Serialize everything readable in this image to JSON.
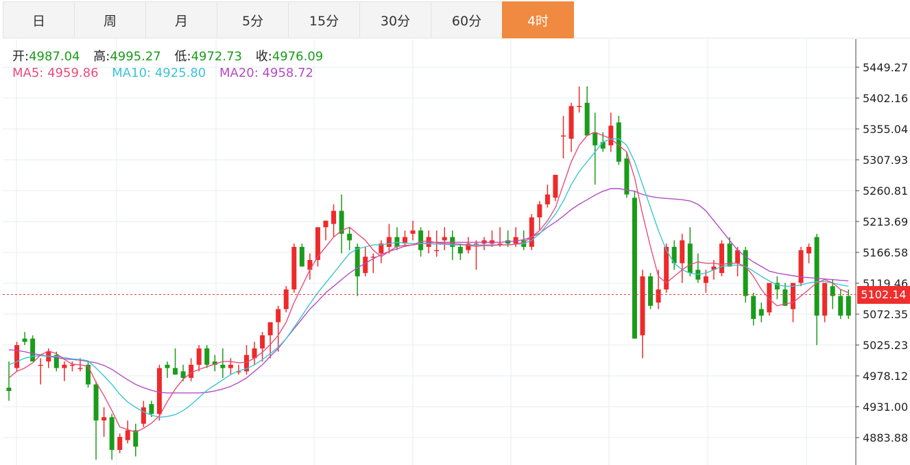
{
  "tabs": [
    {
      "label": "日",
      "active": false
    },
    {
      "label": "周",
      "active": false
    },
    {
      "label": "月",
      "active": false
    },
    {
      "label": "5分",
      "active": false
    },
    {
      "label": "15分",
      "active": false
    },
    {
      "label": "30分",
      "active": false
    },
    {
      "label": "60分",
      "active": false
    },
    {
      "label": "4时",
      "active": true
    }
  ],
  "ohlc": {
    "open_label": "开:",
    "open": "4987.04",
    "high_label": "高:",
    "high": "4995.27",
    "low_label": "低:",
    "low": "4972.73",
    "close_label": "收:",
    "close": "4976.09"
  },
  "ma": {
    "ma5_label": "MA5:",
    "ma5": "4959.86",
    "ma10_label": "MA10:",
    "ma10": "4925.80",
    "ma20_label": "MA20:",
    "ma20": "4958.72"
  },
  "current_price": "5102.14",
  "colors": {
    "up": "#ee2a2a",
    "down": "#1a9c1a",
    "ma5": "#e84c7a",
    "ma10": "#3cc4d4",
    "ma20": "#b44cc4",
    "grid": "#e4ecf2",
    "accent": "#f08a40",
    "price_line": "#e83a3a"
  },
  "chart_data": {
    "type": "candlestick",
    "y_ticks": [
      "5449.27",
      "5402.16",
      "5355.04",
      "5307.93",
      "5260.81",
      "5213.69",
      "5166.58",
      "5119.46",
      "5072.35",
      "5025.23",
      "4978.12",
      "4931.00",
      "4883.88"
    ],
    "ylim": [
      4850,
      5480
    ],
    "current_price": 5102.14,
    "candles": [
      [
        4960,
        5000,
        4940,
        4955
      ],
      [
        4990,
        5030,
        4985,
        5025
      ],
      [
        5035,
        5045,
        5025,
        5030
      ],
      [
        5035,
        5040,
        5000,
        5000
      ],
      [
        4995,
        5005,
        4965,
        4995
      ],
      [
        5000,
        5020,
        4990,
        5015
      ],
      [
        5010,
        5015,
        4985,
        4990
      ],
      [
        4990,
        5000,
        4970,
        4995
      ],
      [
        4995,
        5000,
        4985,
        4995
      ],
      [
        4990,
        5005,
        4985,
        4990
      ],
      [
        4995,
        5000,
        4960,
        4965
      ],
      [
        4965,
        4970,
        4850,
        4910
      ],
      [
        4910,
        4930,
        4885,
        4915
      ],
      [
        4915,
        4920,
        4850,
        4865
      ],
      [
        4865,
        4890,
        4860,
        4885
      ],
      [
        4880,
        4910,
        4875,
        4895
      ],
      [
        4895,
        4905,
        4855,
        4870
      ],
      [
        4905,
        4940,
        4900,
        4930
      ],
      [
        4935,
        4940,
        4915,
        4920
      ],
      [
        4920,
        4995,
        4910,
        4990
      ],
      [
        4995,
        5000,
        4975,
        4990
      ],
      [
        4990,
        5020,
        4980,
        4980
      ],
      [
        4985,
        4995,
        4970,
        4975
      ],
      [
        4975,
        5005,
        4970,
        4995
      ],
      [
        4995,
        5025,
        4985,
        5020
      ],
      [
        5020,
        5025,
        4990,
        4995
      ],
      [
        5000,
        5010,
        4985,
        4995
      ],
      [
        4995,
        5020,
        4975,
        4990
      ],
      [
        4990,
        5005,
        4980,
        4995
      ],
      [
        4985,
        4995,
        4980,
        4985
      ],
      [
        4985,
        5025,
        4980,
        5010
      ],
      [
        5005,
        5030,
        4995,
        5020
      ],
      [
        5020,
        5045,
        5000,
        5040
      ],
      [
        5040,
        5060,
        5005,
        5060
      ],
      [
        5060,
        5085,
        5015,
        5080
      ],
      [
        5080,
        5115,
        5075,
        5110
      ],
      [
        5110,
        5180,
        5105,
        5175
      ],
      [
        5175,
        5180,
        5145,
        5145
      ],
      [
        5140,
        5165,
        5125,
        5155
      ],
      [
        5155,
        5205,
        5145,
        5205
      ],
      [
        5205,
        5215,
        5185,
        5215
      ],
      [
        5210,
        5240,
        5190,
        5230
      ],
      [
        5230,
        5255,
        5165,
        5195
      ],
      [
        5195,
        5205,
        5170,
        5185
      ],
      [
        5175,
        5180,
        5100,
        5130
      ],
      [
        5135,
        5175,
        5130,
        5160
      ],
      [
        5160,
        5165,
        5135,
        5160
      ],
      [
        5165,
        5185,
        5150,
        5180
      ],
      [
        5175,
        5210,
        5165,
        5190
      ],
      [
        5190,
        5205,
        5170,
        5175
      ],
      [
        5180,
        5200,
        5175,
        5190
      ],
      [
        5195,
        5215,
        5185,
        5200
      ],
      [
        5200,
        5205,
        5160,
        5170
      ],
      [
        5175,
        5200,
        5165,
        5190
      ],
      [
        5170,
        5200,
        5160,
        5170
      ],
      [
        5185,
        5205,
        5170,
        5190
      ],
      [
        5190,
        5200,
        5155,
        5175
      ],
      [
        5175,
        5180,
        5155,
        5165
      ],
      [
        5170,
        5190,
        5165,
        5180
      ],
      [
        5180,
        5185,
        5140,
        5180
      ],
      [
        5180,
        5190,
        5170,
        5185
      ],
      [
        5180,
        5200,
        5175,
        5185
      ],
      [
        5180,
        5205,
        5175,
        5180
      ],
      [
        5185,
        5200,
        5175,
        5180
      ],
      [
        5180,
        5205,
        5175,
        5190
      ],
      [
        5185,
        5200,
        5170,
        5175
      ],
      [
        5175,
        5225,
        5170,
        5220
      ],
      [
        5220,
        5245,
        5200,
        5240
      ],
      [
        5240,
        5270,
        5235,
        5255
      ],
      [
        5250,
        5285,
        5245,
        5285
      ],
      [
        5345,
        5375,
        5310,
        5345
      ],
      [
        5340,
        5395,
        5320,
        5390
      ],
      [
        5390,
        5420,
        5380,
        5390
      ],
      [
        5395,
        5420,
        5345,
        5345
      ],
      [
        5350,
        5380,
        5270,
        5330
      ],
      [
        5335,
        5350,
        5320,
        5325
      ],
      [
        5330,
        5380,
        5320,
        5360
      ],
      [
        5365,
        5375,
        5300,
        5305
      ],
      [
        5310,
        5320,
        5250,
        5255
      ],
      [
        5250,
        5260,
        5035,
        5035
      ],
      [
        5040,
        5140,
        5005,
        5130
      ],
      [
        5130,
        5135,
        5080,
        5085
      ],
      [
        5090,
        5140,
        5080,
        5110
      ],
      [
        5110,
        5180,
        5105,
        5175
      ],
      [
        5175,
        5185,
        5140,
        5150
      ],
      [
        5150,
        5195,
        5120,
        5185
      ],
      [
        5180,
        5205,
        5130,
        5135
      ],
      [
        5140,
        5165,
        5120,
        5125
      ],
      [
        5120,
        5140,
        5105,
        5130
      ],
      [
        5140,
        5155,
        5125,
        5145
      ],
      [
        5135,
        5185,
        5130,
        5180
      ],
      [
        5180,
        5190,
        5145,
        5145
      ],
      [
        5150,
        5175,
        5130,
        5170
      ],
      [
        5170,
        5175,
        5090,
        5100
      ],
      [
        5100,
        5105,
        5055,
        5065
      ],
      [
        5080,
        5090,
        5060,
        5070
      ],
      [
        5075,
        5120,
        5070,
        5120
      ],
      [
        5120,
        5130,
        5095,
        5110
      ],
      [
        5110,
        5120,
        5085,
        5085
      ],
      [
        5080,
        5120,
        5060,
        5120
      ],
      [
        5120,
        5175,
        5115,
        5170
      ],
      [
        5165,
        5180,
        5150,
        5175
      ],
      [
        5190,
        5195,
        5025,
        5070
      ],
      [
        5070,
        5115,
        5060,
        5120
      ],
      [
        5115,
        5125,
        5080,
        5100
      ],
      [
        5100,
        5110,
        5065,
        5070
      ],
      [
        5100,
        5110,
        5065,
        5070
      ]
    ],
    "ma5": [
      4975,
      4985,
      4990,
      4998,
      5010,
      5016,
      5012,
      5003,
      4996,
      4995,
      4993,
      4968,
      4948,
      4925,
      4900,
      4896,
      4892,
      4898,
      4906,
      4917,
      4939,
      4958,
      4973,
      4983,
      4988,
      4992,
      4996,
      5000,
      5000,
      4998,
      4999,
      5005,
      5014,
      5026,
      5040,
      5060,
      5090,
      5115,
      5140,
      5160,
      5175,
      5190,
      5200,
      5205,
      5195,
      5185,
      5170,
      5160,
      5168,
      5176,
      5177,
      5178,
      5183,
      5184,
      5181,
      5180,
      5180,
      5179,
      5177,
      5176,
      5177,
      5177,
      5178,
      5178,
      5179,
      5182,
      5190,
      5200,
      5215,
      5235,
      5270,
      5305,
      5330,
      5345,
      5350,
      5345,
      5340,
      5330,
      5320,
      5280,
      5225,
      5175,
      5130,
      5120,
      5130,
      5140,
      5148,
      5152,
      5150,
      5150,
      5148,
      5150,
      5150,
      5145,
      5130,
      5110,
      5095,
      5085,
      5088,
      5090,
      5100,
      5110,
      5120,
      5125,
      5120,
      5110,
      5105
    ],
    "ma10": [
      4995,
      5000,
      5005,
      5008,
      5009,
      5008,
      5008,
      5006,
      5004,
      5003,
      5001,
      4990,
      4978,
      4965,
      4950,
      4938,
      4930,
      4923,
      4918,
      4915,
      4916,
      4919,
      4925,
      4934,
      4945,
      4956,
      4964,
      4972,
      4980,
      4986,
      4989,
      4995,
      5003,
      5012,
      5022,
      5035,
      5052,
      5070,
      5088,
      5105,
      5120,
      5135,
      5150,
      5165,
      5172,
      5175,
      5178,
      5178,
      5180,
      5182,
      5181,
      5180,
      5180,
      5180,
      5179,
      5179,
      5178,
      5178,
      5178,
      5178,
      5178,
      5178,
      5178,
      5178,
      5179,
      5180,
      5185,
      5195,
      5210,
      5225,
      5245,
      5270,
      5290,
      5305,
      5320,
      5335,
      5340,
      5340,
      5330,
      5305,
      5270,
      5235,
      5200,
      5170,
      5150,
      5140,
      5135,
      5133,
      5135,
      5140,
      5145,
      5147,
      5147,
      5145,
      5138,
      5130,
      5123,
      5117,
      5115,
      5115,
      5117,
      5120,
      5122,
      5122,
      5120,
      5117,
      5115
    ],
    "ma20": [
      5018,
      5017,
      5015,
      5012,
      5010,
      5008,
      5006,
      5004,
      5003,
      5002,
      5000,
      4998,
      4994,
      4988,
      4980,
      4972,
      4965,
      4960,
      4956,
      4953,
      4952,
      4952,
      4952,
      4952,
      4952,
      4953,
      4955,
      4958,
      4962,
      4968,
      4975,
      4985,
      4995,
      5008,
      5020,
      5035,
      5050,
      5065,
      5080,
      5092,
      5105,
      5115,
      5125,
      5135,
      5143,
      5150,
      5157,
      5163,
      5168,
      5172,
      5176,
      5178,
      5180,
      5181,
      5182,
      5182,
      5182,
      5182,
      5182,
      5182,
      5182,
      5182,
      5182,
      5183,
      5184,
      5186,
      5190,
      5196,
      5205,
      5213,
      5222,
      5232,
      5240,
      5247,
      5254,
      5260,
      5264,
      5264,
      5262,
      5260,
      5255,
      5252,
      5250,
      5249,
      5248,
      5247,
      5245,
      5240,
      5230,
      5215,
      5200,
      5185,
      5170,
      5160,
      5152,
      5145,
      5138,
      5135,
      5133,
      5131,
      5129,
      5128,
      5127,
      5126,
      5125,
      5124,
      5123
    ]
  }
}
